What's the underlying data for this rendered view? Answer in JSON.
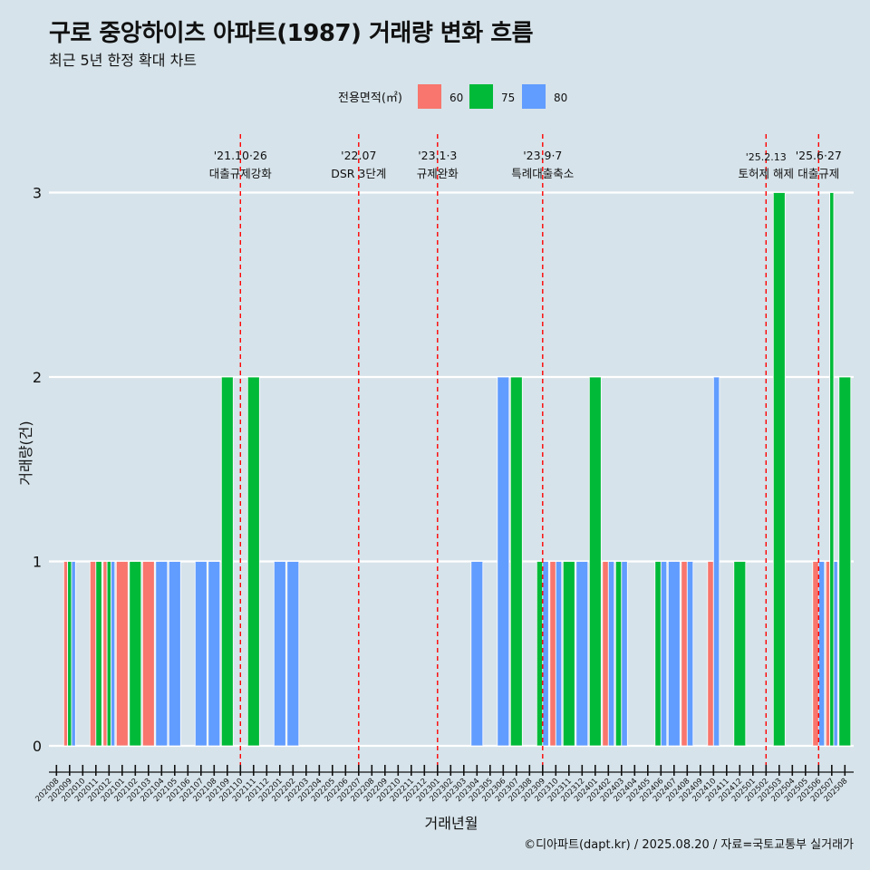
{
  "chart_data": {
    "type": "bar",
    "title": "구로 중앙하이츠 아파트(1987) 거래량 변화 흐름",
    "subtitle": "최근 5년 한정 확대 차트",
    "xlabel": "거래년월",
    "ylabel": "거래량(건)",
    "caption": "©디아파트(dapt.kr) / 2025.08.20 / 자료=국토교통부 실거래가",
    "legend": {
      "title": "전용면적(㎡)",
      "position": "top"
    },
    "colors": {
      "60": "#f8766d",
      "75": "#00ba38",
      "80": "#619cff"
    },
    "ylim": [
      0,
      3
    ],
    "y_ticks": [
      0,
      1,
      2,
      3
    ],
    "grid": true,
    "categories": [
      "202008",
      "202009",
      "202010",
      "202011",
      "202012",
      "202101",
      "202102",
      "202103",
      "202104",
      "202105",
      "202106",
      "202107",
      "202108",
      "202109",
      "202110",
      "202111",
      "202112",
      "202201",
      "202202",
      "202203",
      "202204",
      "202205",
      "202206",
      "202207",
      "202208",
      "202209",
      "202210",
      "202211",
      "202212",
      "202301",
      "202302",
      "202303",
      "202304",
      "202305",
      "202306",
      "202307",
      "202308",
      "202309",
      "202310",
      "202311",
      "202312",
      "202401",
      "202402",
      "202403",
      "202404",
      "202405",
      "202406",
      "202407",
      "202408",
      "202409",
      "202410",
      "202411",
      "202412",
      "202501",
      "202502",
      "202503",
      "202504",
      "202505",
      "202506",
      "202507",
      "202508"
    ],
    "series": [
      {
        "name": "60",
        "values": [
          0,
          1,
          0,
          1,
          1,
          1,
          0,
          1,
          0,
          0,
          0,
          0,
          0,
          0,
          0,
          0,
          0,
          0,
          0,
          0,
          0,
          0,
          0,
          0,
          0,
          0,
          0,
          0,
          0,
          0,
          0,
          0,
          0,
          0,
          0,
          0,
          0,
          0,
          1,
          0,
          0,
          0,
          1,
          0,
          0,
          0,
          0,
          0,
          1,
          0,
          1,
          0,
          0,
          0,
          0,
          0,
          0,
          0,
          1,
          1,
          0
        ]
      },
      {
        "name": "75",
        "values": [
          0,
          1,
          0,
          1,
          1,
          0,
          1,
          0,
          0,
          0,
          0,
          0,
          0,
          2,
          0,
          2,
          0,
          0,
          0,
          0,
          0,
          0,
          0,
          0,
          0,
          0,
          0,
          0,
          0,
          0,
          0,
          0,
          0,
          0,
          0,
          2,
          0,
          1,
          0,
          1,
          0,
          2,
          0,
          1,
          0,
          0,
          1,
          0,
          0,
          0,
          0,
          0,
          1,
          0,
          0,
          3,
          0,
          0,
          0,
          3,
          2
        ]
      },
      {
        "name": "80",
        "values": [
          0,
          1,
          0,
          0,
          1,
          0,
          0,
          0,
          1,
          1,
          0,
          1,
          1,
          0,
          0,
          0,
          0,
          1,
          1,
          0,
          0,
          0,
          0,
          0,
          0,
          0,
          0,
          0,
          0,
          0,
          0,
          0,
          1,
          0,
          2,
          0,
          0,
          1,
          1,
          0,
          1,
          0,
          1,
          1,
          0,
          0,
          1,
          1,
          1,
          0,
          2,
          0,
          0,
          0,
          0,
          0,
          0,
          0,
          1,
          1,
          0
        ]
      }
    ],
    "annotations": [
      {
        "category": "202110",
        "date": "'21.10·26",
        "label": "대출규제강화"
      },
      {
        "category": "202207",
        "date": "'22.07",
        "label": "DSR 3단계"
      },
      {
        "category": "202301",
        "date": "'23.1·3",
        "label": "규제완화"
      },
      {
        "category": "202309",
        "date": "'23.9·7",
        "label": "특례대출축소"
      },
      {
        "category": "202502",
        "date": "'25.2.13",
        "label": "토허제 해제"
      },
      {
        "category": "202506",
        "date": "'25.6·27",
        "label": "대출규제"
      }
    ]
  }
}
